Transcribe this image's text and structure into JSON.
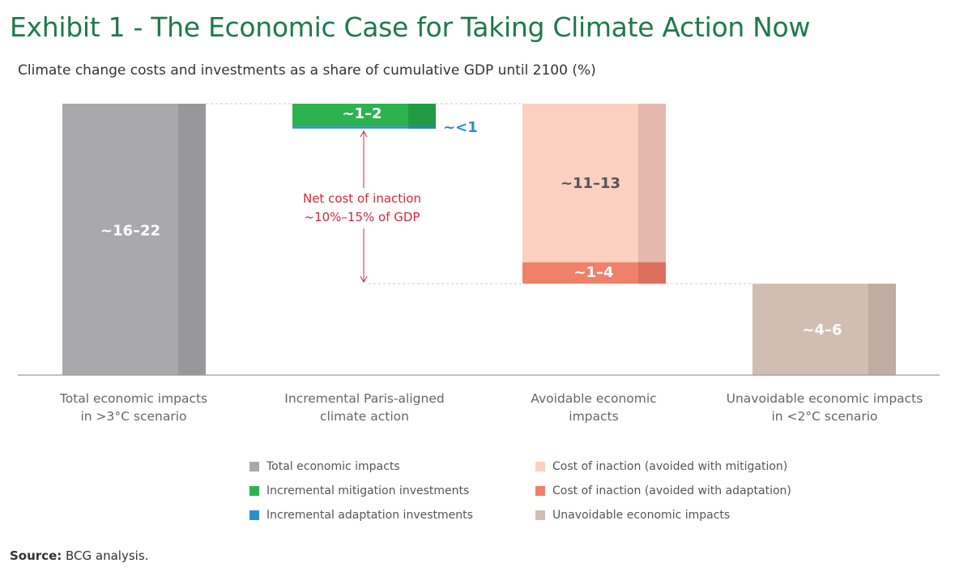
{
  "header": {
    "title": "Exhibit 1 - The Economic Case for Taking Climate Action Now",
    "subtitle": "Climate change costs and investments as a share of cumulative GDP until 2100 (%)"
  },
  "chart_data": {
    "type": "bar",
    "subtype": "waterfall",
    "unit": "% of cumulative GDP until 2100",
    "grid": false,
    "categories": [
      "Total economic impacts in >3°C scenario",
      "Incremental Paris-aligned climate action",
      "Avoidable economic impacts",
      "Unavoidable economic impacts in <2°C scenario"
    ],
    "category_labels": [
      [
        "Total economic impacts",
        "in >3°C scenario"
      ],
      [
        "Incremental Paris-aligned",
        "climate action"
      ],
      [
        "Avoidable economic",
        "impacts"
      ],
      [
        "Unavoidable economic impacts",
        "in <2°C scenario"
      ]
    ],
    "segments": [
      {
        "category": 0,
        "series": "total",
        "bottom": 0,
        "top": 19,
        "label": "~16–22"
      },
      {
        "category": 1,
        "series": "mitigation",
        "bottom": 17.4,
        "top": 19,
        "label": "~1–2"
      },
      {
        "category": 1,
        "series": "adaptation",
        "bottom": 17.3,
        "top": 17.4,
        "label": "~<1"
      },
      {
        "category": 2,
        "series": "avoided_mitigation",
        "bottom": 7.9,
        "top": 19,
        "label": "~11–13"
      },
      {
        "category": 2,
        "series": "avoided_adaptation",
        "bottom": 6.4,
        "top": 7.9,
        "label": "~1–4"
      },
      {
        "category": 3,
        "series": "unavoidable",
        "bottom": 0,
        "top": 6.4,
        "label": "~4–6"
      }
    ],
    "annotation": {
      "lines": [
        "Net cost of inaction",
        "~10%–15% of GDP"
      ],
      "from": 17.3,
      "to": 6.4,
      "color": "#d4283e"
    },
    "legend": {
      "placement": "bottom",
      "items": [
        {
          "key": "total",
          "label": "Total economic impacts",
          "color": "#a9a9ab"
        },
        {
          "key": "mitigation",
          "label": "Incremental mitigation investments",
          "color": "#2cb34f"
        },
        {
          "key": "adaptation",
          "label": "Incremental adaptation investments",
          "color": "#2a8fd0"
        },
        {
          "key": "avoided_mitigation",
          "label": "Cost of inaction (avoided with mitigation)",
          "color": "#fad0c0"
        },
        {
          "key": "avoided_adaptation",
          "label": "Cost of inaction (avoided with adaptation)",
          "color": "#ef806a"
        },
        {
          "key": "unavoidable",
          "label": "Unavoidable economic impacts",
          "color": "#d1bdb2"
        }
      ]
    }
  },
  "footer": {
    "source_label": "Source:",
    "source_text": " BCG analysis."
  }
}
